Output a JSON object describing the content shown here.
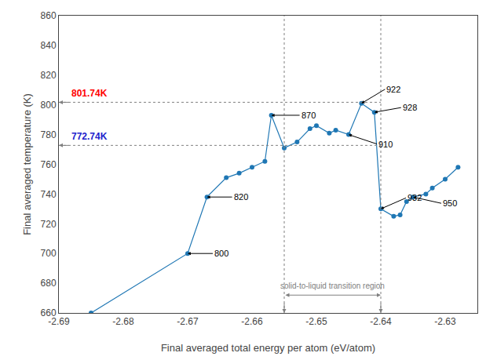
{
  "chart_data": {
    "type": "line",
    "xlabel": "Final averaged total energy per atom (eV/atom)",
    "ylabel": "Final averaged temperature (K)",
    "marker": "circle",
    "grid": false,
    "xlim": [
      -2.69,
      -2.625
    ],
    "ylim": [
      660,
      860
    ],
    "xticks": [
      -2.69,
      -2.68,
      -2.67,
      -2.66,
      -2.65,
      -2.64,
      -2.63
    ],
    "yticks": [
      660,
      680,
      700,
      720,
      740,
      760,
      780,
      800,
      820,
      840,
      860
    ],
    "x": [
      -2.685,
      -2.67,
      -2.667,
      -2.664,
      -2.662,
      -2.66,
      -2.658,
      -2.657,
      -2.655,
      -2.653,
      -2.651,
      -2.65,
      -2.648,
      -2.647,
      -2.645,
      -2.643,
      -2.641,
      -2.64,
      -2.638,
      -2.637,
      -2.636,
      -2.635,
      -2.633,
      -2.632,
      -2.63,
      -2.628
    ],
    "values": [
      660,
      700,
      738,
      751,
      754,
      758,
      762,
      793,
      771,
      775,
      784,
      786,
      781,
      783,
      780,
      801,
      795,
      730,
      725,
      726,
      735,
      738,
      740,
      744,
      750,
      758
    ],
    "hlines": [
      {
        "y": 801.74,
        "label": "801.74K",
        "color": "red"
      },
      {
        "y": 772.74,
        "label": "772.74K",
        "color": "#2222CC"
      }
    ],
    "transition": {
      "x": [
        -2.655,
        -2.64
      ],
      "label": "solid-to-liquid transition region"
    },
    "annotations": [
      {
        "text": "800",
        "x": -2.67,
        "y": 700
      },
      {
        "text": "820",
        "x": -2.667,
        "y": 738
      },
      {
        "text": "870",
        "x": -2.657,
        "y": 793
      },
      {
        "text": "910",
        "x": -2.645,
        "y": 780
      },
      {
        "text": "922",
        "x": -2.643,
        "y": 801
      },
      {
        "text": "928",
        "x": -2.641,
        "y": 795
      },
      {
        "text": "932",
        "x": -2.64,
        "y": 730
      },
      {
        "text": "950",
        "x": -2.635,
        "y": 738
      }
    ]
  }
}
